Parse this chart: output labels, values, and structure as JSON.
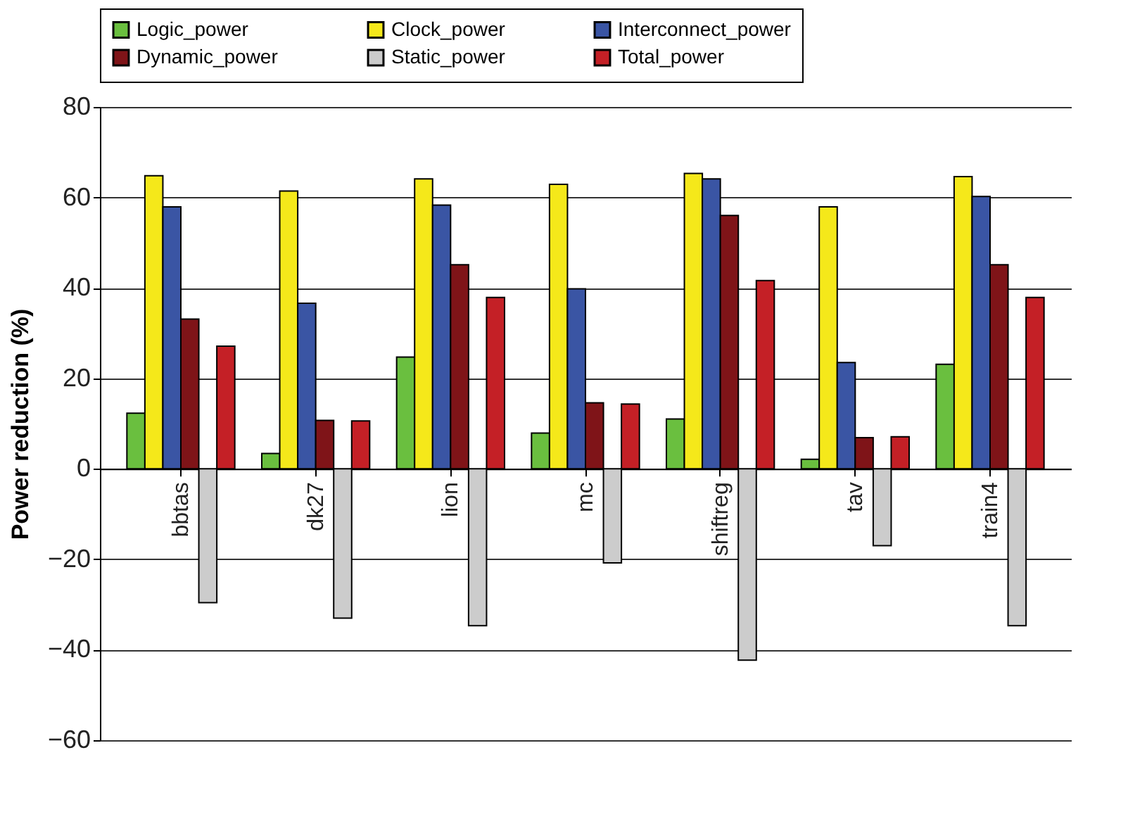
{
  "chart_data": {
    "type": "bar",
    "ylabel": "Power reduction (%)",
    "categories": [
      "bbtas",
      "dk27",
      "lion",
      "mc",
      "shiftreg",
      "tav",
      "train4"
    ],
    "series": [
      {
        "name": "Logic_power",
        "color": "#6abf3f",
        "values": [
          12.3,
          3.4,
          24.7,
          7.9,
          11,
          2.1,
          23.1
        ]
      },
      {
        "name": "Clock_power",
        "color": "#f5e81a",
        "values": [
          64.8,
          61.4,
          64.1,
          62.9,
          65.3,
          57.9,
          64.6
        ]
      },
      {
        "name": "Interconnect_power",
        "color": "#3a55a4",
        "values": [
          57.9,
          36.6,
          58.3,
          39.8,
          64.1,
          23.5,
          60.2
        ]
      },
      {
        "name": "Dynamic_power",
        "color": "#7f1418",
        "values": [
          33.1,
          10.7,
          45.1,
          14.6,
          56,
          6.9,
          45.1
        ]
      },
      {
        "name": "Static_power",
        "color": "#cccccc",
        "values": [
          -29.6,
          -33,
          -34.7,
          -20.8,
          -42.3,
          -17,
          -34.7
        ]
      },
      {
        "name": "Total_power",
        "color": "#c42026",
        "values": [
          27.1,
          10.6,
          37.9,
          14.3,
          41.6,
          7.1,
          37.9
        ]
      }
    ],
    "ylim": [
      -60,
      80
    ],
    "yticks": [
      -60,
      -40,
      -20,
      0,
      20,
      40,
      60,
      80
    ],
    "grid": "y",
    "legend": "top"
  }
}
